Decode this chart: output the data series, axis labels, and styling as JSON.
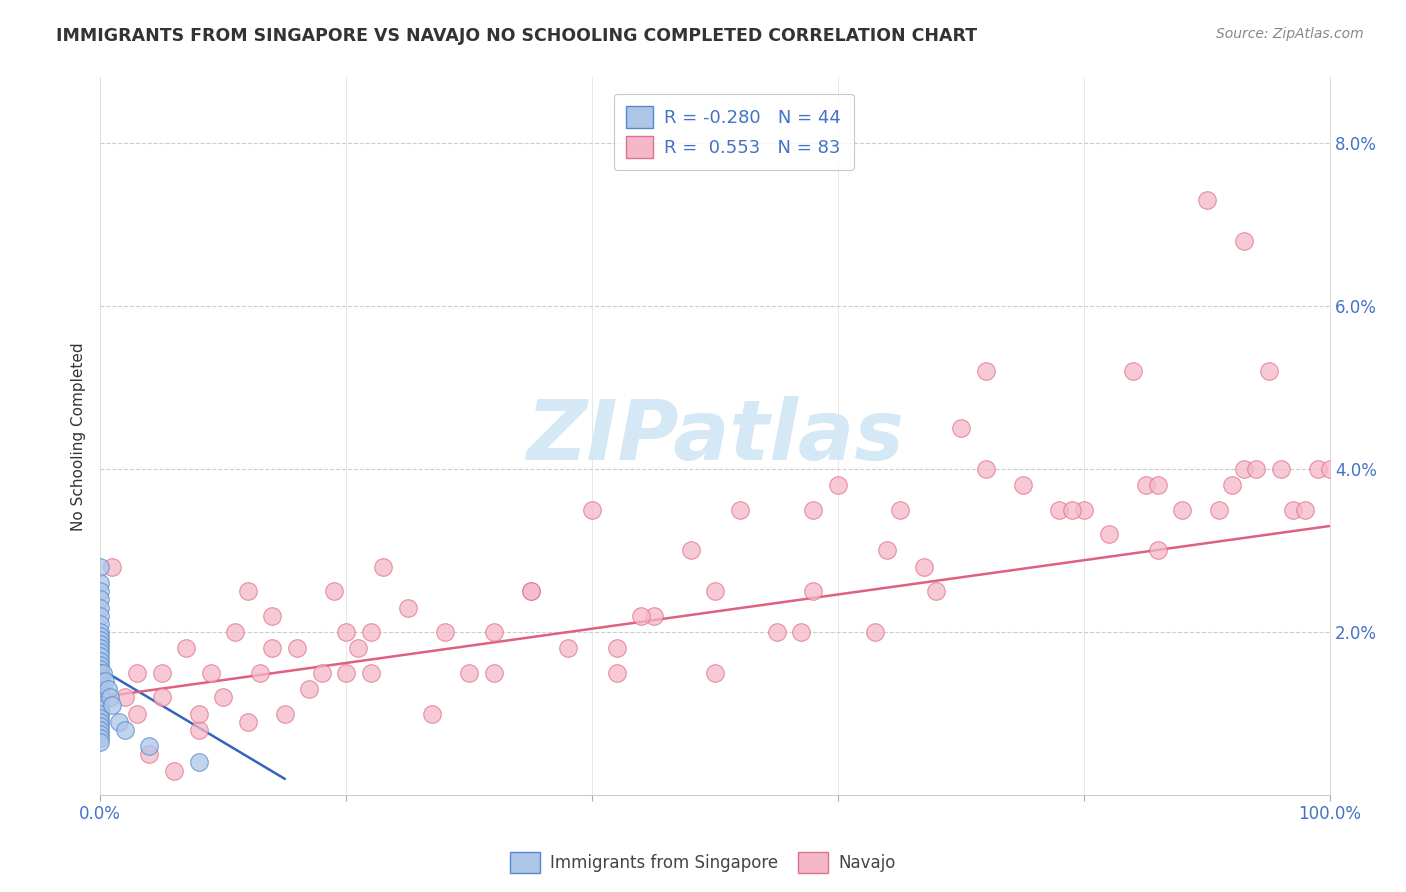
{
  "title": "IMMIGRANTS FROM SINGAPORE VS NAVAJO NO SCHOOLING COMPLETED CORRELATION CHART",
  "source": "Source: ZipAtlas.com",
  "ylabel": "No Schooling Completed",
  "legend_label1": "Immigrants from Singapore",
  "legend_label2": "Navajo",
  "R1": -0.28,
  "N1": 44,
  "R2": 0.553,
  "N2": 83,
  "color_blue_fill": "#adc6e8",
  "color_blue_edge": "#5588cc",
  "color_pink_fill": "#f5b8c8",
  "color_pink_edge": "#e07090",
  "color_blue_line": "#3366bb",
  "color_pink_line": "#e06080",
  "watermark_color": "#d5e8f5",
  "background_color": "#ffffff",
  "grid_color": "#cccccc",
  "xlim": [
    0,
    100
  ],
  "ylim": [
    0,
    8.8
  ],
  "ytick_positions": [
    0,
    2,
    4,
    6,
    8
  ],
  "ytick_labels": [
    "",
    "2.0%",
    "4.0%",
    "6.0%",
    "8.0%"
  ],
  "title_color": "#333333",
  "source_color": "#888888",
  "tick_color": "#4472c4",
  "ylabel_color": "#333333",
  "blue_dots": {
    "x": [
      0.0,
      0.0,
      0.0,
      0.0,
      0.0,
      0.0,
      0.0,
      0.0,
      0.0,
      0.0,
      0.0,
      0.0,
      0.0,
      0.0,
      0.0,
      0.0,
      0.0,
      0.0,
      0.0,
      0.0,
      0.0,
      0.0,
      0.0,
      0.0,
      0.0,
      0.0,
      0.0,
      0.0,
      0.0,
      0.0,
      0.0,
      0.0,
      0.0,
      0.0,
      0.0,
      0.2,
      0.4,
      0.6,
      0.8,
      1.0,
      1.5,
      2.0,
      4.0,
      8.0
    ],
    "y": [
      2.8,
      2.6,
      2.5,
      2.4,
      2.3,
      2.2,
      2.1,
      2.0,
      1.95,
      1.9,
      1.85,
      1.8,
      1.75,
      1.7,
      1.65,
      1.6,
      1.55,
      1.5,
      1.45,
      1.4,
      1.35,
      1.3,
      1.25,
      1.2,
      1.15,
      1.1,
      1.05,
      1.0,
      0.95,
      0.9,
      0.85,
      0.8,
      0.75,
      0.7,
      0.65,
      1.5,
      1.4,
      1.3,
      1.2,
      1.1,
      0.9,
      0.8,
      0.6,
      0.4
    ]
  },
  "pink_dots": {
    "x": [
      1.0,
      2.0,
      3.0,
      4.0,
      5.0,
      6.0,
      7.0,
      8.0,
      9.0,
      10.0,
      11.0,
      12.0,
      13.0,
      14.0,
      15.0,
      16.0,
      17.0,
      18.0,
      19.0,
      20.0,
      21.0,
      22.0,
      23.0,
      25.0,
      27.0,
      30.0,
      32.0,
      35.0,
      38.0,
      40.0,
      42.0,
      45.0,
      48.0,
      50.0,
      52.0,
      55.0,
      58.0,
      60.0,
      63.0,
      65.0,
      68.0,
      70.0,
      72.0,
      75.0,
      78.0,
      80.0,
      82.0,
      84.0,
      85.0,
      86.0,
      88.0,
      90.0,
      91.0,
      92.0,
      93.0,
      94.0,
      95.0,
      96.0,
      97.0,
      98.0,
      99.0,
      100.0,
      3.0,
      8.0,
      14.0,
      20.0,
      28.0,
      35.0,
      42.0,
      50.0,
      58.0,
      64.0,
      72.0,
      79.0,
      86.0,
      93.0,
      5.0,
      12.0,
      22.0,
      32.0,
      44.0,
      57.0,
      67.0
    ],
    "y": [
      2.8,
      1.2,
      1.0,
      0.5,
      1.5,
      0.3,
      1.8,
      0.8,
      1.5,
      1.2,
      2.0,
      0.9,
      1.5,
      2.2,
      1.0,
      1.8,
      1.3,
      1.5,
      2.5,
      2.0,
      1.8,
      1.5,
      2.8,
      2.3,
      1.0,
      1.5,
      2.0,
      2.5,
      1.8,
      3.5,
      1.5,
      2.2,
      3.0,
      2.5,
      3.5,
      2.0,
      2.5,
      3.8,
      2.0,
      3.5,
      2.5,
      4.5,
      4.0,
      3.8,
      3.5,
      3.5,
      3.2,
      5.2,
      3.8,
      3.0,
      3.5,
      7.3,
      3.5,
      3.8,
      4.0,
      4.0,
      5.2,
      4.0,
      3.5,
      3.5,
      4.0,
      4.0,
      1.5,
      1.0,
      1.8,
      1.5,
      2.0,
      2.5,
      1.8,
      1.5,
      3.5,
      3.0,
      5.2,
      3.5,
      3.8,
      6.8,
      1.2,
      2.5,
      2.0,
      1.5,
      2.2,
      2.0,
      2.8
    ]
  },
  "blue_line": {
    "x0": 0.0,
    "x1": 15.0,
    "y0": 1.55,
    "y1": 0.2
  },
  "pink_line": {
    "x0": 0.0,
    "x1": 100.0,
    "y0": 1.2,
    "y1": 3.3
  }
}
